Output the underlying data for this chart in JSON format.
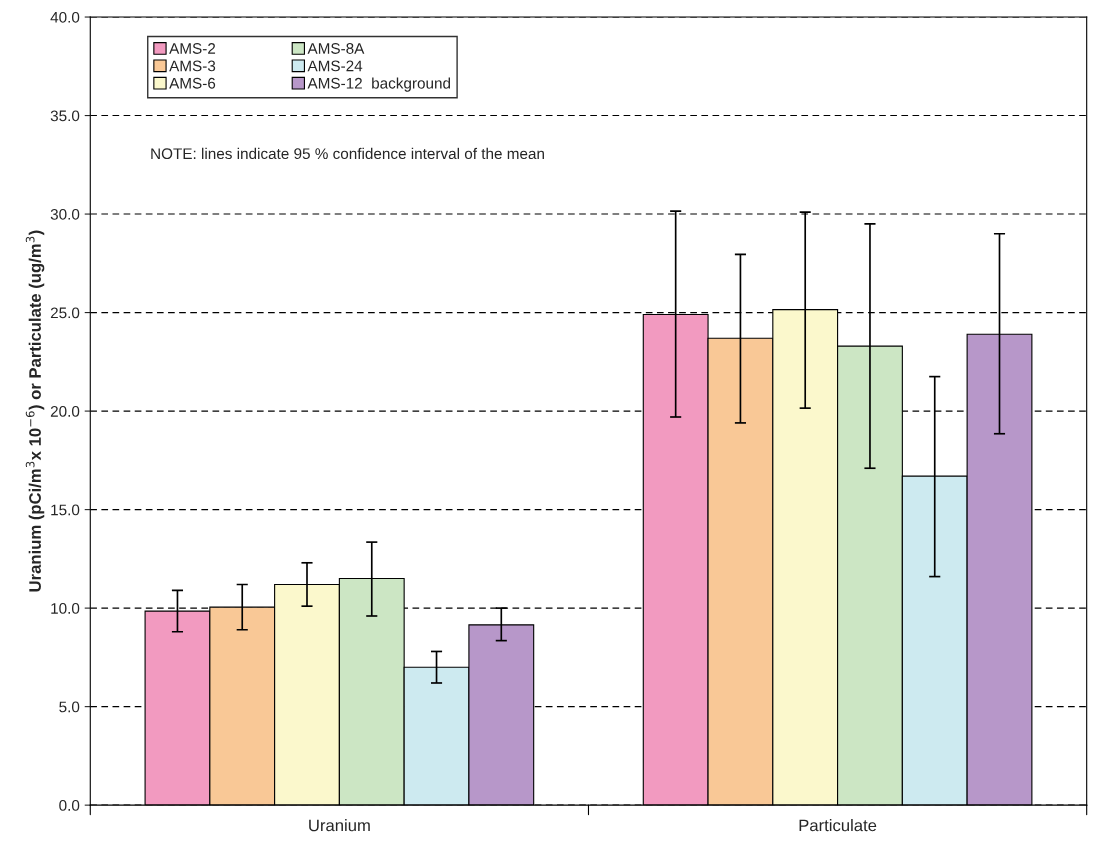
{
  "chart_data": {
    "type": "bar",
    "categories": [
      "Uranium",
      "Particulate"
    ],
    "ylabel": "Uranium (pCi/m$^{3}$x 10$^{−6}$) or Particulate (ug/m$^{3}$)",
    "series": [
      {
        "name": "AMS-2",
        "color": "#f29ac0",
        "values": [
          9.85,
          24.9
        ],
        "errors": [
          [
            8.8,
            10.9
          ],
          [
            19.7,
            30.15
          ]
        ]
      },
      {
        "name": "AMS-3",
        "color": "#f9c896",
        "values": [
          10.05,
          23.7
        ],
        "errors": [
          [
            8.9,
            11.2
          ],
          [
            19.4,
            27.95
          ]
        ]
      },
      {
        "name": "AMS-6",
        "color": "#fbf8cc",
        "values": [
          11.2,
          25.15
        ],
        "errors": [
          [
            10.1,
            12.3
          ],
          [
            20.15,
            30.1
          ]
        ]
      },
      {
        "name": "AMS-8A",
        "color": "#cce6c4",
        "values": [
          11.5,
          23.3
        ],
        "errors": [
          [
            9.6,
            13.35
          ],
          [
            17.1,
            29.5
          ]
        ]
      },
      {
        "name": "AMS-24",
        "color": "#cdeaf0",
        "values": [
          7.0,
          16.7
        ],
        "errors": [
          [
            6.2,
            7.8
          ],
          [
            11.6,
            21.75
          ]
        ]
      },
      {
        "name": "AMS-12  background",
        "color": "#b797c9",
        "values": [
          9.15,
          23.9
        ],
        "errors": [
          [
            8.35,
            10.0
          ],
          [
            18.85,
            29.0
          ]
        ]
      }
    ],
    "annotations": [
      "NOTE: lines indicate 95 % confidence interval of the mean"
    ],
    "ylim": [
      0,
      40
    ],
    "yticks": [
      {
        "value": 0,
        "label": "0.0"
      },
      {
        "value": 5,
        "label": "5.0"
      },
      {
        "value": 10,
        "label": "10.0"
      },
      {
        "value": 15,
        "label": "15.0"
      },
      {
        "value": 20,
        "label": "20.0"
      },
      {
        "value": 25,
        "label": "25.0"
      },
      {
        "value": 30,
        "label": "30.0"
      },
      {
        "value": 35,
        "label": "35.0"
      },
      {
        "value": 40,
        "label": "40.0"
      }
    ],
    "grid": "y",
    "legend": "top left"
  }
}
